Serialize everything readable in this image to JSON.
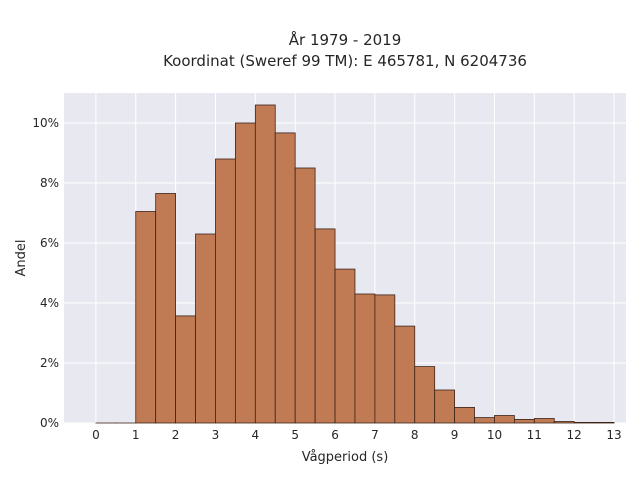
{
  "chart_data": {
    "type": "bar",
    "title": "År 1979 - 2019",
    "subtitle": "Koordinat (Sweref 99 TM): E 465781, N 6204736",
    "xlabel": "Vågperiod (s)",
    "ylabel": "Andel",
    "bin_width": 0.5,
    "bin_starts": [
      0,
      0.5,
      1,
      1.5,
      2,
      2.5,
      3,
      3.5,
      4,
      4.5,
      5,
      5.5,
      6,
      6.5,
      7,
      7.5,
      8,
      8.5,
      9,
      9.5,
      10,
      10.5,
      11,
      11.5,
      12,
      12.5
    ],
    "values": [
      0.0,
      0.0,
      7.05,
      7.65,
      3.57,
      6.3,
      8.8,
      10.0,
      10.6,
      9.67,
      8.5,
      6.47,
      5.13,
      4.3,
      4.27,
      3.23,
      1.88,
      1.1,
      0.52,
      0.18,
      0.25,
      0.12,
      0.15,
      0.05,
      0.02,
      0.02
    ],
    "xlim": [
      -0.8,
      13.3
    ],
    "ylim": [
      0,
      11
    ],
    "xticks": [
      0,
      1,
      2,
      3,
      4,
      5,
      6,
      7,
      8,
      9,
      10,
      11,
      12,
      13
    ],
    "yticks": [
      0,
      2,
      4,
      6,
      8,
      10
    ],
    "ytick_labels": [
      "0%",
      "2%",
      "4%",
      "6%",
      "8%",
      "10%"
    ],
    "bar_color": "#c07b55",
    "bar_edge_color": "#3d2418",
    "background_color": "#e8e8f1",
    "grid": true
  }
}
